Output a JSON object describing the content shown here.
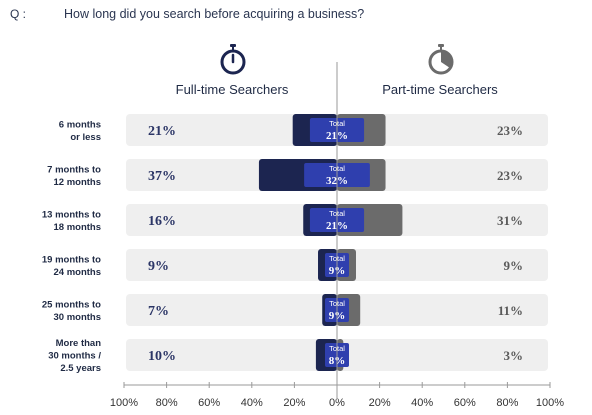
{
  "question": {
    "prefix": "Q :",
    "text": "How long did you search before acquiring a business?"
  },
  "groups": {
    "left": {
      "label": "Full-time Searchers",
      "icon": "stopwatch-icon",
      "color": "#1c2550"
    },
    "right": {
      "label": "Part-time Searchers",
      "icon": "stopwatch-icon",
      "color": "#6b6b6b"
    }
  },
  "chart_data": {
    "type": "bar",
    "categories": [
      [
        "6 months",
        "or less"
      ],
      [
        "7 months to",
        "12 months"
      ],
      [
        "13 months to",
        "18 months"
      ],
      [
        "19 months to",
        "24 months"
      ],
      [
        "25 months to",
        "30 months"
      ],
      [
        "More than",
        "30 months /",
        "2.5 years"
      ]
    ],
    "series": [
      {
        "name": "Full-time Searchers",
        "values": [
          21,
          37,
          16,
          9,
          7,
          10
        ],
        "color": "#1c2550"
      },
      {
        "name": "Part-time Searchers",
        "values": [
          23,
          23,
          31,
          9,
          11,
          3
        ],
        "color": "#6b6b6b"
      }
    ],
    "total": {
      "label": "Total",
      "values": [
        21,
        32,
        21,
        9,
        9,
        8
      ],
      "color": "#2f3fae"
    },
    "value_labels_left": [
      "21%",
      "37%",
      "16%",
      "9%",
      "7%",
      "10%"
    ],
    "value_labels_right": [
      "23%",
      "23%",
      "31%",
      "9%",
      "11%",
      "3%"
    ],
    "total_labels": [
      "21%",
      "32%",
      "21%",
      "9%",
      "9%",
      "8%"
    ],
    "xticks": [
      "100%",
      "80%",
      "60%",
      "40%",
      "20%",
      "0%",
      "20%",
      "40%",
      "60%",
      "80%",
      "100%"
    ],
    "xlim": [
      -100,
      100
    ],
    "row_background": "#efefef",
    "grid": false
  }
}
